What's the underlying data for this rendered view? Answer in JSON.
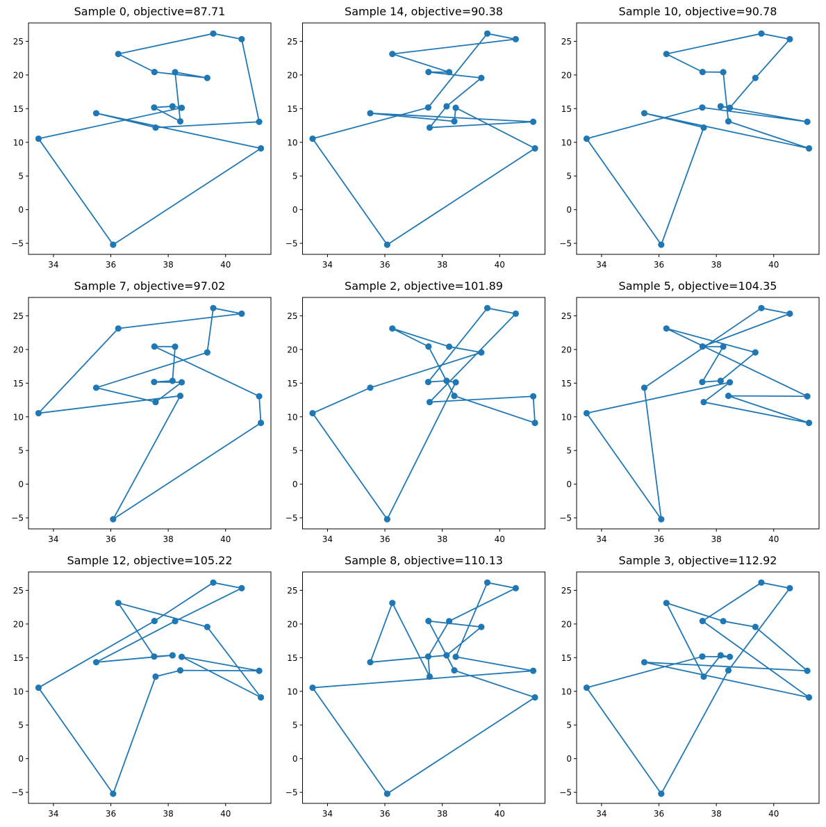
{
  "figure": {
    "layout": "3x3 grid",
    "series_color": "#1f77b4"
  },
  "chart_data": {
    "type": "line",
    "description": "TSP tour samples over 16 cities (markers + closed route line)",
    "cities": {
      "1": [
        38.24,
        20.42
      ],
      "2": [
        39.57,
        26.15
      ],
      "3": [
        40.56,
        25.32
      ],
      "4": [
        36.26,
        23.12
      ],
      "5": [
        33.48,
        10.54
      ],
      "6": [
        37.56,
        12.19
      ],
      "7": [
        38.42,
        13.11
      ],
      "8": [
        37.52,
        20.44
      ],
      "9": [
        41.23,
        9.1
      ],
      "10": [
        41.17,
        13.05
      ],
      "11": [
        36.08,
        -5.21
      ],
      "12": [
        38.47,
        15.13
      ],
      "13": [
        38.15,
        15.35
      ],
      "14": [
        37.51,
        15.17
      ],
      "15": [
        35.49,
        14.32
      ],
      "16": [
        39.36,
        19.56
      ]
    },
    "xlim": [
      33.13,
      41.58
    ],
    "ylim": [
      -6.64,
      27.73
    ],
    "xticks": [
      34,
      36,
      38,
      40
    ],
    "yticks": [
      -5,
      0,
      5,
      10,
      15,
      20,
      25
    ],
    "grid": false,
    "legend": "none",
    "subplots": [
      {
        "title": "Sample 0, objective=87.71",
        "sample": 0,
        "objective": 87.71,
        "tour": [
          5,
          11,
          9,
          15,
          6,
          10,
          3,
          2,
          4,
          8,
          16,
          1,
          7,
          14,
          13,
          12
        ]
      },
      {
        "title": "Sample 14, objective=90.38",
        "sample": 14,
        "objective": 90.38,
        "tour": [
          5,
          14,
          2,
          3,
          4,
          1,
          8,
          16,
          13,
          6,
          10,
          15,
          7,
          12,
          9,
          11
        ]
      },
      {
        "title": "Sample 10, objective=90.78",
        "sample": 10,
        "objective": 90.78,
        "tour": [
          5,
          14,
          10,
          13,
          12,
          16,
          3,
          2,
          4,
          8,
          1,
          7,
          9,
          15,
          6,
          11
        ]
      },
      {
        "title": "Sample 7, objective=97.02",
        "sample": 7,
        "objective": 97.02,
        "tour": [
          5,
          4,
          3,
          2,
          16,
          15,
          6,
          12,
          14,
          13,
          1,
          8,
          10,
          9,
          11,
          7
        ]
      },
      {
        "title": "Sample 2, objective=101.89",
        "sample": 2,
        "objective": 101.89,
        "tour": [
          5,
          15,
          16,
          1,
          4,
          8,
          7,
          9,
          10,
          6,
          3,
          2,
          14,
          13,
          12,
          11
        ]
      },
      {
        "title": "Sample 5, objective=104.35",
        "sample": 5,
        "objective": 104.35,
        "tour": [
          5,
          11,
          15,
          2,
          3,
          8,
          1,
          14,
          13,
          16,
          4,
          10,
          7,
          9,
          6,
          12
        ]
      },
      {
        "title": "Sample 12, objective=105.22",
        "sample": 12,
        "objective": 105.22,
        "tour": [
          5,
          8,
          2,
          3,
          1,
          15,
          13,
          14,
          4,
          16,
          9,
          12,
          10,
          7,
          6,
          11
        ]
      },
      {
        "title": "Sample 8, objective=110.13",
        "sample": 8,
        "objective": 110.13,
        "tour": [
          5,
          10,
          12,
          2,
          3,
          1,
          14,
          6,
          4,
          15,
          13,
          16,
          8,
          7,
          9,
          11
        ]
      },
      {
        "title": "Sample 3, objective=112.92",
        "sample": 3,
        "objective": 112.92,
        "tour": [
          5,
          11,
          7,
          3,
          2,
          8,
          9,
          15,
          10,
          16,
          1,
          4,
          6,
          13,
          12,
          14
        ]
      }
    ]
  }
}
